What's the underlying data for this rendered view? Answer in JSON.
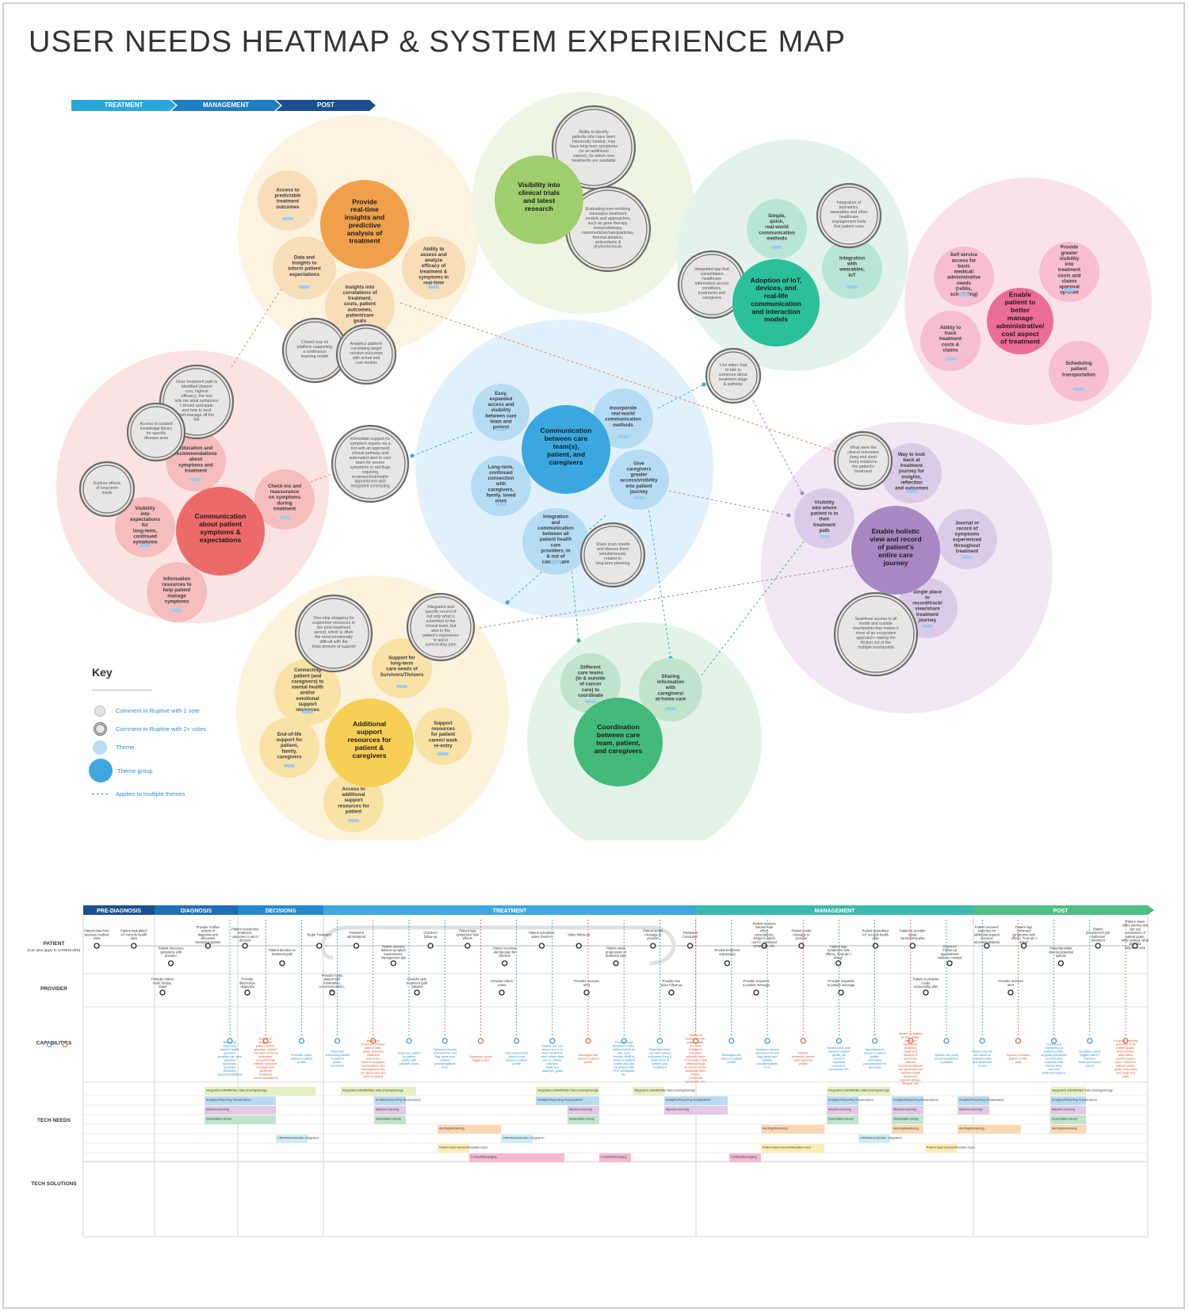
{
  "title": "USER NEEDS HEATMAP & SYSTEM EXPERIENCE MAP",
  "legend_phases": [
    {
      "label": "TREATMENT",
      "color": "#2aa6dc"
    },
    {
      "label": "MANAGEMENT",
      "color": "#1f7dc0"
    },
    {
      "label": "POST",
      "color": "#1d4f8f"
    }
  ],
  "key": {
    "title": "Key",
    "items": [
      "Comment in Ruptive with 1 vote",
      "Comment in Ruptive with 2+ votes",
      "Theme",
      "Theme group",
      "Applies to multiple themes"
    ]
  },
  "heatmap": {
    "groups": [
      {
        "id": "orange",
        "bg": "#fdf3e1",
        "theme_color": "#f0a04b",
        "light": "#f8ddb9",
        "group": "Provide real-time insights and predictive analysis of treatment",
        "themes": [
          "Access to predictable treatment outcomes",
          "Data and insights to inform patient expectations",
          "Insights into correlations of treatment, costs, patient outcomes, patient/care goals",
          "Ability to assess and analyze efficacy of treatment & symptoms in real-time"
        ],
        "comments": [
          "Closed loop ml platform supporting a continuous learning model",
          "Analytics platform correlating target solution outcomes with actual and cost models"
        ]
      },
      {
        "id": "green-light",
        "bg": "#eef5e3",
        "theme_color": "#9fce6c",
        "light": "#d6ebbd",
        "group": "Visibility into clinical trials and latest research",
        "themes": [],
        "comments": [
          "Ability to identify patients who have been historically treated, may have long-term symptoms (or an additional cancer), for which new treatments are available",
          "Evaluating ever-evolving innovative treatment models and approaches, such as gene therapy, immunotherapy, nanomedicine/nanoparticles, thermal ablation, antioxidants & phytochemicals"
        ]
      },
      {
        "id": "teal",
        "bg": "#e3f3ec",
        "theme_color": "#2bbf9c",
        "light": "#b8e5d8",
        "group": "Adoption of IoT, devices, and real-life communication and interaction models",
        "themes": [
          "Simple, quick, real-world communication methods",
          "Integration with wearables, IoT"
        ],
        "comments": [
          "Integration of biometrics, wearables and other healthcare management tools that patient uses",
          "Integrated app that consolidates healthcare information across conditions, treatments and caregivers",
          "Live video chat to talk to someone about treatment stage & pathway"
        ]
      },
      {
        "id": "pink",
        "bg": "#fbe2ea",
        "theme_color": "#ea6d97",
        "light": "#f6bed0",
        "group": "Enable patient to better manage administrative/ cost aspect of treatment",
        "themes": [
          "Self service access for basic medical/ administrative needs (refills, scheduling)",
          "Provide greater visibility into treatment costs and claims approval up-front",
          "Ability to track treatment costs & claims",
          "Scheduling patient transportation"
        ],
        "comments": []
      },
      {
        "id": "red",
        "bg": "#fbe3e2",
        "theme_color": "#ec6b6a",
        "light": "#f6bdbd",
        "group": "Communication about patient symptoms & expectations",
        "themes": [
          "Education and recommendations about symptoms and treatment",
          "Check-ins and reassurance on symptoms during treatment",
          "Visibility into expectations for long-term, continued symptoms",
          "Information resources to help patient manage symptoms"
        ],
        "comments": [
          "Once treatment path is identified (lowest cost, highest efficacy), the tool tells me what symptoms I should anticipate and how to best self-manage off the bat",
          "Access to curated knowledge library for specific disease area",
          "Explore effects of long-term meds",
          "Immediate support for symptom reports via a bot with an approved clinical pathway and automated alert to care team for severe symptoms or red flags requiring in-person/telehealth appointment with integrated scheduling"
        ]
      },
      {
        "id": "blue",
        "bg": "#e1f1fb",
        "theme_color": "#3aa7e0",
        "light": "#b6dcf4",
        "group": "Communication between care team(s), patient, and caregivers",
        "themes": [
          "Easy, expanded access and visibility between care team and patient",
          "Incorporate real-world communication methods",
          "Long-term, continued connection with caregivers, family, loved ones",
          "Give caregivers greater access/visibility into patient journey",
          "Integration and communication between all patient health care providers, in & out of cancer care"
        ],
        "comments": [
          "Share scan results and discuss them simultaneously related to long-term planning"
        ]
      },
      {
        "id": "purple",
        "bg": "#f1e8f3",
        "theme_color": "#a887c2",
        "light": "#dccbe8",
        "group": "Enable holistic view and record of patient's entire care journey",
        "themes": [
          "Way to look back at treatment journey for insights, reflection and outcomes",
          "Visibility into where patient is in their treatment path",
          "Journal or record of symptoms experienced throughout treatment",
          "Single place to record/track/ view/share treatment journey"
        ],
        "comments": [
          "What were the clinical outcomes (long and short term) related to the patient's treatment",
          "Seamless access to all inside and outside touchpoints that makes it more of an ecosystem approach—taking the friction out of the multiple touchpoints"
        ]
      },
      {
        "id": "yellow",
        "bg": "#fdf3dd",
        "theme_color": "#f7cf55",
        "light": "#f8e2a5",
        "group": "Additional support resources for patient & caregivers",
        "themes": [
          "Support for long-term care needs of Survivors/Thrivers",
          "Connecting patient (and caregivers) to mental health and/or emotional support resources",
          "Support resources for patient career/ work re-entry",
          "End-of-life support for patient, family, caregivers",
          "Access to additional support resources for patient"
        ],
        "comments": [
          "One-stop shopping for supportive resources in the post-treatment period, which is often the most emotionally difficult with the least amount of support",
          "Integrated and specific record of not only what is submitted to the clinical team, but also to the patient's experience to aid in survivorship plan"
        ]
      },
      {
        "id": "green",
        "bg": "#e4f3e8",
        "theme_color": "#43b97a",
        "light": "#bfe4cb",
        "group": "Coordination between care team, patient, and caregivers",
        "themes": [
          "Different care teams (in & outside of cancer care) to coordinate",
          "Sharing information with caregivers/ at-home care"
        ],
        "comments": []
      }
    ]
  },
  "journey": {
    "phases": [
      {
        "label": "PRE-DIAGNOSIS",
        "color": "#1d4f8f"
      },
      {
        "label": "DIAGNOSIS",
        "color": "#1f6fb5"
      },
      {
        "label": "DECISIONS",
        "color": "#2589cf"
      },
      {
        "label": "TREATMENT",
        "color": "#3fa9df"
      },
      {
        "label": "MANAGEMENT",
        "color": "#3cb9b0"
      },
      {
        "label": "POST",
        "color": "#4cbe86"
      }
    ],
    "lanes": [
      {
        "label": "PATIENT",
        "sub": "(Can also apply to CAREGIVER)"
      },
      {
        "label": "PROVIDER",
        "sub": ""
      },
      {
        "label": "CAPABILITIES",
        "sub": ""
      },
      {
        "label": "TECH NEEDS",
        "sub": ""
      },
      {
        "label": "TECH SOLUTIONS",
        "sub": ""
      }
    ],
    "patient_steps": [
      "Patient data from previous medical visits",
      "Patient wearables/ IoT records health data",
      "Patient discusses symptoms with provider",
      "Provider notifies patient of diagnosis and discusses treatment options",
      "Patient researches treatment, outcomes to aid in decision",
      "Patient decides on treatment path",
      "Begin Treatment",
      "Treatment administered",
      "Patient receives tailored symptom expectations, management tips",
      "Check-in/ follow-up",
      "Patient logs symptoms/ side effects",
      "Patient receives alert/prompt for check-in",
      "Patient schedules video check-in",
      "Video follow-up",
      "Patient views progression of treatment plan",
      "Patient sends message to provider",
      "Treatment Concludes",
      "Review treatment outcome(s)",
      "Patient receives tailored side effect expectations, things to watch out for, continued symptoms, etc.",
      "Patient sends message to provider",
      "Patient logs symptoms/ side effects, \"how am I doing\"",
      "Patient wearables/ IoT records health data",
      "Patient & provider create survivorship plan",
      "Check-in/ Follow-up appointment cadence created",
      "Patient receives/ searches for additional support resource recommendations",
      "Patient logs continued symptoms/ side effects, \"how am I doing\"",
      "Patient/provider discuss potential options",
      "Patient joins/doesn't join trial/novel treatment",
      "Patient views entire journey and can see correlations of patient goals, what worked, what didn't for long-term care"
    ],
    "provider_steps": [
      "Provider orders tests, biopsy, scans",
      "Provider determines diagnosis",
      "Provider helps patient with information, recommendation, etc.",
      "Provider gets treatment path initiated",
      "Provider orders scans",
      "Provider receives alert",
      "Provider live video follow-up",
      "Provider responds to patient message",
      "Provider responds to patient message",
      "Patient & provider create survivorship plan",
      "Provider receives alert"
    ],
    "capabilities": [
      "Based on diagnosis, patient health, genetics, provider can view previous outcomes, generate treatment recommendations",
      "Based on diagnosis, patient health, genetics, patient can view previous outcomes, expected side effects, symptom management, generate treatment recommendations",
      "Provider notes added to patient profile",
      "Referrals/ scheduling added to patient profile, reminders",
      "Based on treatment chosen, patient data, goals, previous treatment outcomes, tailored symptom expectations and management tips are generated and sent to patient",
      "Scans are added to patient profile with provider notes",
      "Symptom reports assessed for 'red flag' alerts and notifies provider/patient if so",
      "Symptom report triggers alert",
      "Video/notes from check-in are saved in patient profile",
      "Patient can see where she is in their treatment plan, where they are vs. others' previous treatment journeys, goals",
      "Messages are saved in patient profile",
      "Provider logs treatment notes, patient follow up info, scan results; EMR is saved in patient profile and can be shared with PCP, therapists, etc.",
      "Patient/provider can view clinical outcomes (long & short term) of patient and treatment",
      "Based on treatment path, patient data, previous treatment outcomes, tailored report of expected side effects, things to watch out for, long/short term effects, continued symptoms, etc.",
      "Messages are saved in patient profile",
      "Symptom reports assessed for 'red flag' alerts and notifies provider/patient if so",
      "Patient biometric/ device data saved to profile",
      "Survivorship plan saved to patient profile (w/ report of expected outcomes, symptoms, etc.",
      "Appointments saved in patient profile; reminders pushed/saved to device(s)",
      "Based on patient profile, goals, reported symptoms, analytics, treatment histories & outcomes, tailored recommendations are generated for needed health resources, support groups, lifestyle, etc.",
      "System can push recommendations to patient",
      "Patient reports are saved to patient profile and treatment record",
      "System receives patient profile data",
      "Continuous monitoring of patient profile, ongoing symptoms for potential matches with clinical trials and trial treatment options",
      "Symptom report triggers alert if trial/new treatment match found",
      "On-going tracking and view of all patient goals, what worked, alternative care/therapies done, based on patient profile, goals, outcomes and treatment path"
    ],
    "tech_needs": [
      {
        "label": "Integration w/EMR/DBs/ Data sharing/storage",
        "color": "#e6efbf"
      },
      {
        "label": "Analytics/Reporting Visualizations",
        "color": "#b9dcf3"
      },
      {
        "label": "Machine learning",
        "color": "#e3c9e6"
      },
      {
        "label": "Searchable Library",
        "color": "#bfe4cb"
      },
      {
        "label": "Alerting/Monitoring",
        "color": "#fbd7b3"
      },
      {
        "label": "CRM/Administrative Integration",
        "color": "#cfeef3"
      },
      {
        "label": "Patient Input Device/Wearable Input",
        "color": "#fbeeb5"
      },
      {
        "label": "Contact/Messaging",
        "color": "#f6b7d2"
      }
    ]
  }
}
